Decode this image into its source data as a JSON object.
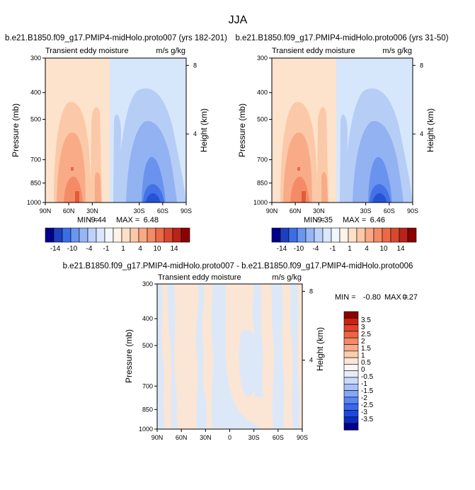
{
  "figure": {
    "title": "JJA"
  },
  "colors": {
    "panel_scale": [
      "#00008b",
      "#1e3fbf",
      "#3b6ee6",
      "#6a96f0",
      "#96b6f5",
      "#bdd2fa",
      "#dae7fc",
      "#f3f6ff",
      "#fff3e8",
      "#fde0c8",
      "#fcc8a8",
      "#f9a985",
      "#f58a66",
      "#ec6948",
      "#d9472f",
      "#b8241a",
      "#8b0000"
    ],
    "diff_scale": [
      "#00008b",
      "#0a2cc0",
      "#1f47e0",
      "#3b67f0",
      "#5c85f5",
      "#86a6f7",
      "#a9c2f8",
      "#cbdaf9",
      "#e6edf9",
      "#f7f7f7",
      "#fde6d5",
      "#fbcdb0",
      "#f8ac8a",
      "#f48a66",
      "#ec6446",
      "#e04128",
      "#c8250f",
      "#8b0000"
    ]
  },
  "chart_data": [
    {
      "type": "heatmap",
      "title": "b.e21.B1850.f09_g17.PMIP4-midHolo.proto007 (yrs 182-201)",
      "left_label": "Transient eddy moisture",
      "right_label": "m/s g/kg",
      "ylabel": "Pressure (mb)",
      "ylabel_right": "Height (km)",
      "x_ticks": [
        "90N",
        "60N",
        "30N",
        "30S",
        "60S",
        "90S"
      ],
      "x_tick_pos": [
        90,
        60,
        30,
        -30,
        -60,
        -90
      ],
      "y_ticks": [
        "300",
        "400",
        "500",
        "700",
        "850",
        "1000"
      ],
      "y_tick_pos": [
        300,
        400,
        500,
        700,
        850,
        1000
      ],
      "height_ticks": [
        "8",
        "4"
      ],
      "height_tick_pos": [
        8,
        4
      ],
      "xlim": [
        90,
        -90
      ],
      "ylim": [
        300,
        1000
      ],
      "min_label": "MIN =",
      "min": "-9.44",
      "max_label": "MAX =",
      "max": "6.48",
      "colorbar_labels": [
        "-14",
        "-10",
        "-4",
        "-1",
        "1",
        "4",
        "10",
        "14"
      ]
    },
    {
      "type": "heatmap",
      "title": "b.e21.B1850.f09_g17.PMIP4-midHolo.proto006 (yrs 31-50)",
      "left_label": "Transient eddy moisture",
      "right_label": "m/s g/kg",
      "ylabel": "Pressure (mb)",
      "ylabel_right": "Height (km)",
      "x_ticks": [
        "90N",
        "60N",
        "30N",
        "30S",
        "60S",
        "90S"
      ],
      "x_tick_pos": [
        90,
        60,
        30,
        -30,
        -60,
        -90
      ],
      "y_ticks": [
        "300",
        "400",
        "500",
        "700",
        "850",
        "1000"
      ],
      "y_tick_pos": [
        300,
        400,
        500,
        700,
        850,
        1000
      ],
      "height_ticks": [
        "8",
        "4"
      ],
      "height_tick_pos": [
        8,
        4
      ],
      "xlim": [
        90,
        -90
      ],
      "ylim": [
        300,
        1000
      ],
      "min_label": "MIN =",
      "min": "-9.35",
      "max_label": "MAX =",
      "max": "6.46",
      "colorbar_labels": [
        "-14",
        "-10",
        "-4",
        "-1",
        "1",
        "4",
        "10",
        "14"
      ]
    },
    {
      "type": "heatmap",
      "title": "b.e21.B1850.f09_g17.PMIP4-midHolo.proto007 - b.e21.B1850.f09_g17.PMIP4-midHolo.proto006",
      "left_label": "Transient eddy moisture",
      "right_label": "m/s g/kg",
      "ylabel": "Pressure (mb)",
      "ylabel_right": "Height (km)",
      "x_ticks": [
        "90N",
        "60N",
        "30N",
        "0",
        "30S",
        "60S",
        "90S"
      ],
      "x_tick_pos": [
        90,
        60,
        30,
        0,
        -30,
        -60,
        -90
      ],
      "y_ticks": [
        "300",
        "400",
        "500",
        "700",
        "850",
        "1000"
      ],
      "y_tick_pos": [
        300,
        400,
        500,
        700,
        850,
        1000
      ],
      "height_ticks": [
        "8",
        "4"
      ],
      "height_tick_pos": [
        8,
        4
      ],
      "xlim": [
        90,
        -90
      ],
      "ylim": [
        300,
        1000
      ],
      "min_label": "MIN =",
      "min": "-0.80",
      "max_label": "MAX =",
      "max": "0.27",
      "colorbar_labels": [
        "3.5",
        "3",
        "2.5",
        "2",
        "1.5",
        "1",
        "0.5",
        "0",
        "-0.5",
        "-1",
        "-1.5",
        "-2",
        "-2.5",
        "-3",
        "-3.5"
      ]
    }
  ]
}
